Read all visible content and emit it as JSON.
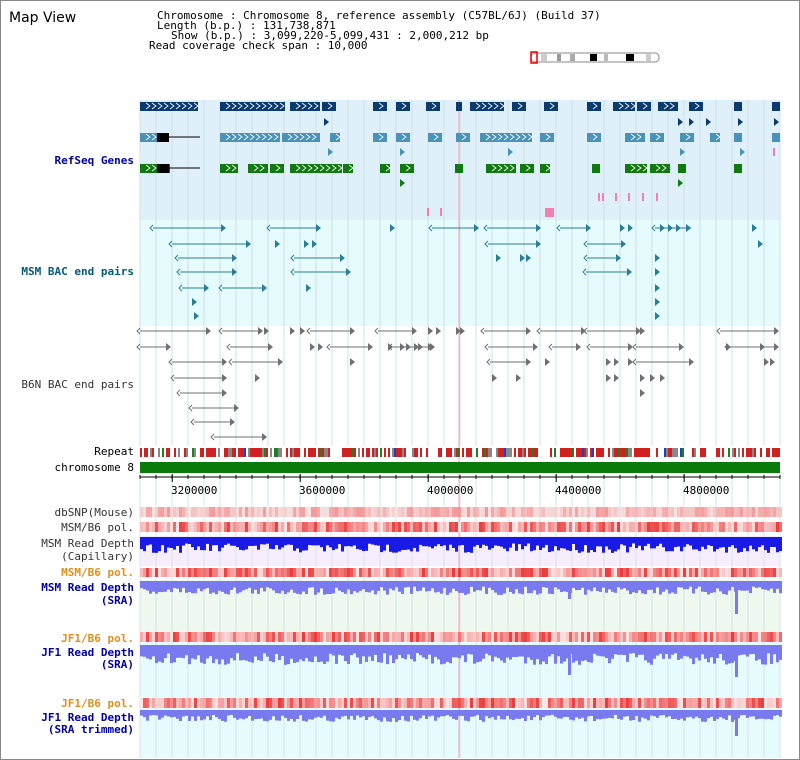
{
  "header": {
    "title": "Map View",
    "lines": [
      "Chromosome    : Chromosome 8, reference assembly (C57BL/6J) (Build 37)",
      "Length (b.p.) : 131,738,871",
      "Show (b.p.) : 3,099,220-5,099,431 : 2,000,212 bp",
      "Read coverage check span : 10,000"
    ]
  },
  "tracks": {
    "refseq": "RefSeq Genes",
    "msm_bac": "MSM BAC end pairs",
    "b6n_bac": "B6N BAC end pairs",
    "repeat": "Repeat",
    "chromosome": "chromosome 8",
    "dbsnp": "dbSNP(Mouse)",
    "msm_pol": "MSM/B6 pol.",
    "msm_depth_cap": [
      "MSM Read Depth",
      "(Capillary)"
    ],
    "msm_pol2": "MSM/B6 pol.",
    "msm_depth_sra": [
      "MSM Read Depth",
      "(SRA)"
    ],
    "jf1_pol": "JF1/B6 pol.",
    "jf1_depth_sra": [
      "JF1 Read Depth",
      "(SRA)"
    ],
    "jf1_pol2": "JF1/B6 pol.",
    "jf1_depth_trim": [
      "JF1 Read Depth",
      "(SRA trimmed)"
    ]
  },
  "axis": {
    "ticks": [
      "3200000",
      "3600000",
      "4000000",
      "4400000",
      "4800000"
    ],
    "tick_values": [
      3200000,
      3600000,
      4000000,
      4400000,
      4800000
    ],
    "range": [
      3099220,
      5099431
    ]
  },
  "colors": {
    "refseq_bg": "#dff0fa",
    "msm_bg": "#e6fbfb",
    "depth_cap_bg": "#f6eefc",
    "depth_sra_bg": "#eef8ee",
    "lower_bg": "#e6fbfb",
    "dark_navy": "#0a3a6e",
    "mid_blue": "#4a93b8",
    "green": "#107a10",
    "pink": "#f080b0",
    "teal_pair": "#2a7f96",
    "gray_pair": "#707070",
    "depth_blue": "#1a1ae6",
    "depth_lav": "#7a7af0"
  }
}
